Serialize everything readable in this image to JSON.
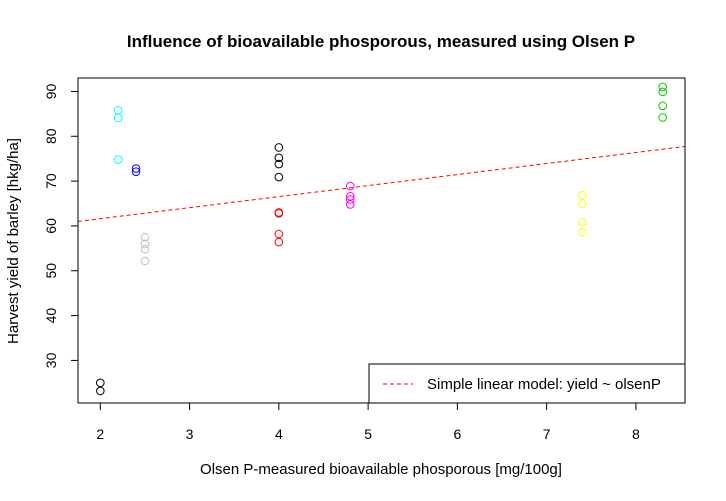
{
  "chart_data": {
    "type": "scatter",
    "title": "Influence of bioavailable phosporous, measured using Olsen P",
    "xlabel": "Olsen P-measured bioavailable phosporous [mg/100g]",
    "ylabel": "Harvest yield of barley [hkg/ha]",
    "xlim": [
      1.75,
      8.55
    ],
    "ylim": [
      20.5,
      93
    ],
    "x_ticks": [
      2,
      3,
      4,
      5,
      6,
      7,
      8
    ],
    "y_ticks": [
      30,
      40,
      50,
      60,
      70,
      80,
      90
    ],
    "x_tick_labels": [
      "2",
      "3",
      "4",
      "5",
      "6",
      "7",
      "8"
    ],
    "y_tick_labels": [
      "30",
      "40",
      "50",
      "60",
      "70",
      "80",
      "90"
    ],
    "grid": false,
    "marker": "open-circle",
    "groups": [
      {
        "color": "#000000",
        "x": 2.0,
        "y": [
          25.0,
          23.2
        ]
      },
      {
        "color": "#00ffff",
        "x": 2.2,
        "y": [
          85.8,
          84.1,
          74.8
        ]
      },
      {
        "color": "#0000ff",
        "x": 2.4,
        "y": [
          72.8,
          72.1
        ]
      },
      {
        "color": "#bebebe",
        "x": 2.5,
        "y": [
          57.5,
          56.0,
          54.8,
          52.2
        ]
      },
      {
        "color": "#000000",
        "x": 4.0,
        "y": [
          77.5,
          75.2,
          73.8,
          70.9
        ]
      },
      {
        "color": "#ff0000",
        "x": 4.0,
        "y": [
          63.0,
          62.8,
          58.2,
          56.4
        ]
      },
      {
        "color": "#ff00ff",
        "x": 4.8,
        "y": [
          68.9,
          66.6,
          65.9,
          64.8
        ]
      },
      {
        "color": "#ffff00",
        "x": 7.4,
        "y": [
          66.9,
          65.0,
          60.8,
          58.6
        ]
      },
      {
        "color": "#00cd00",
        "x": 8.3,
        "y": [
          91.0,
          89.9,
          86.8,
          84.2
        ]
      }
    ],
    "fit_line": {
      "name": "Simple linear model: yield ~ olsenP",
      "color": "#ff0000",
      "style": "dashed",
      "intercept": 56.7,
      "slope": 2.46
    },
    "legend": {
      "position": "bottom-right",
      "entries": [
        "Simple linear model: yield ~ olsenP"
      ]
    }
  }
}
